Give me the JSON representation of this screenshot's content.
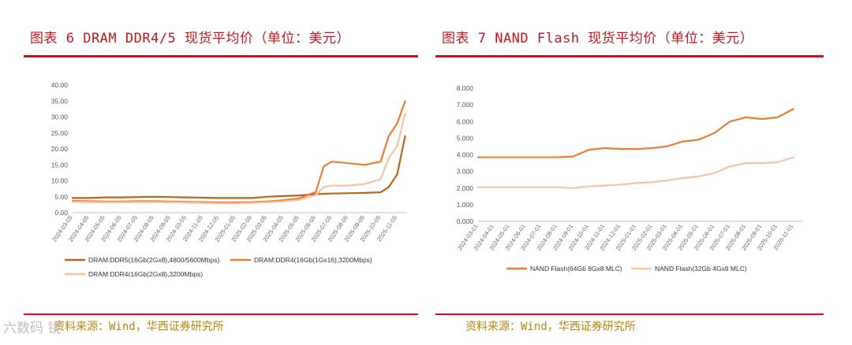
{
  "left": {
    "title": "图表 6 DRAM DDR4/5 现货平均价（单位：美元）",
    "source": "资料来源：Wind，华西证券研究所"
  },
  "right": {
    "title": "图表 7 NAND Flash 现货平均价（单位：美元）",
    "source": "资料来源：Wind，华西证券研究所"
  },
  "watermark": "六数码 镜",
  "chart_data": [
    {
      "type": "line",
      "title": "",
      "xlabel": "",
      "ylabel": "",
      "ylim": [
        0,
        40
      ],
      "yticks": [
        "0.00",
        "5.00",
        "10.00",
        "15.00",
        "20.00",
        "25.00",
        "30.00",
        "35.00",
        "40.00"
      ],
      "xticks": [
        "2024-03-05",
        "2024-04-05",
        "2024-05-05",
        "2024-06-05",
        "2024-07-05",
        "2024-08-05",
        "2024-09-05",
        "2024-10-05",
        "2024-11-05",
        "2024-12-05",
        "2025-01-05",
        "2025-02-05",
        "2025-03-05",
        "2025-04-05",
        "2025-05-05",
        "2025-06-05",
        "2025-07-05",
        "2025-08-05",
        "2025-09-05",
        "2025-10-05",
        "2025-11-05"
      ],
      "grid": false,
      "legend_position": "bottom",
      "series": [
        {
          "name": "DRAM:DDR5(16Gb(2Gx8),4800/5600Mbps)",
          "color": "#b5651d",
          "x": [
            "2024-03-05",
            "2024-04-05",
            "2024-05-05",
            "2024-06-05",
            "2024-07-05",
            "2024-08-05",
            "2024-09-05",
            "2024-10-05",
            "2024-11-05",
            "2024-12-05",
            "2025-01-05",
            "2025-02-05",
            "2025-03-05",
            "2025-04-05",
            "2025-05-05",
            "2025-06-05",
            "2025-07-05",
            "2025-08-05",
            "2025-09-05",
            "2025-10-05",
            "2025-10-20",
            "2025-11-05",
            "2025-11-20"
          ],
          "values": [
            4.6,
            4.6,
            4.8,
            4.8,
            4.9,
            5.0,
            4.9,
            4.8,
            4.7,
            4.6,
            4.6,
            4.6,
            5.0,
            5.2,
            5.4,
            5.8,
            6.0,
            6.1,
            6.2,
            6.4,
            8.0,
            12.0,
            24.0
          ]
        },
        {
          "name": "DRAM:DDR4(16Gb(1Gx16),3200Mbps)",
          "color": "#ed7d31",
          "x": [
            "2024-03-05",
            "2024-04-05",
            "2024-05-05",
            "2024-06-05",
            "2024-07-05",
            "2024-08-05",
            "2024-09-05",
            "2024-10-05",
            "2024-11-05",
            "2024-12-05",
            "2025-01-05",
            "2025-02-05",
            "2025-03-05",
            "2025-04-05",
            "2025-05-05",
            "2025-06-05",
            "2025-06-20",
            "2025-07-05",
            "2025-08-05",
            "2025-09-05",
            "2025-10-05",
            "2025-10-20",
            "2025-11-05",
            "2025-11-20"
          ],
          "values": [
            3.7,
            3.6,
            3.5,
            3.5,
            3.6,
            3.6,
            3.5,
            3.4,
            3.3,
            3.2,
            3.2,
            3.3,
            3.5,
            3.9,
            4.5,
            6.5,
            14.5,
            16.0,
            15.5,
            15.0,
            16.0,
            24.0,
            28.0,
            35.0
          ]
        },
        {
          "name": "DRAM:DDR4(16Gb(2Gx8),3200Mbps)",
          "color": "#f8c3a4",
          "x": [
            "2024-03-05",
            "2024-04-05",
            "2024-05-05",
            "2024-06-05",
            "2024-07-05",
            "2024-08-05",
            "2024-09-05",
            "2024-10-05",
            "2024-11-05",
            "2024-12-05",
            "2025-01-05",
            "2025-02-05",
            "2025-03-05",
            "2025-04-05",
            "2025-05-05",
            "2025-06-05",
            "2025-06-20",
            "2025-07-05",
            "2025-08-05",
            "2025-09-05",
            "2025-10-05",
            "2025-10-20",
            "2025-11-05",
            "2025-11-20"
          ],
          "values": [
            3.4,
            3.3,
            3.2,
            3.2,
            3.3,
            3.3,
            3.2,
            3.1,
            3.0,
            2.9,
            2.9,
            3.0,
            3.2,
            3.5,
            4.0,
            5.5,
            8.0,
            8.5,
            8.5,
            9.0,
            10.5,
            17.0,
            21.0,
            31.0
          ]
        }
      ]
    },
    {
      "type": "line",
      "title": "",
      "xlabel": "",
      "ylabel": "",
      "ylim": [
        0,
        8
      ],
      "yticks": [
        "0.000",
        "1.000",
        "2.000",
        "3.000",
        "4.000",
        "5.000",
        "6.000",
        "7.000",
        "8.000"
      ],
      "xticks": [
        "2024-03-01",
        "2024-04-01",
        "2024-05-01",
        "2024-06-01",
        "2024-07-01",
        "2024-08-01",
        "2024-09-01",
        "2024-10-01",
        "2024-11-01",
        "2024-12-01",
        "2025-01-01",
        "2025-02-01",
        "2025-03-01",
        "2025-04-01",
        "2025-05-01",
        "2025-06-01",
        "2025-07-01",
        "2025-08-01",
        "2025-09-01",
        "2025-10-01",
        "2025-11-01"
      ],
      "grid": false,
      "legend_position": "bottom",
      "series": [
        {
          "name": "NAND Flash(64Gb 8Gx8 MLC)",
          "color": "#ed7d31",
          "x": [
            "2024-03-01",
            "2024-04-01",
            "2024-05-01",
            "2024-06-01",
            "2024-07-01",
            "2024-08-01",
            "2024-09-01",
            "2024-10-01",
            "2024-11-01",
            "2024-12-01",
            "2025-01-01",
            "2025-02-01",
            "2025-03-01",
            "2025-04-01",
            "2025-05-01",
            "2025-06-01",
            "2025-07-01",
            "2025-08-01",
            "2025-09-01",
            "2025-10-01",
            "2025-11-01"
          ],
          "values": [
            3.85,
            3.85,
            3.85,
            3.85,
            3.85,
            3.85,
            3.9,
            4.3,
            4.4,
            4.35,
            4.35,
            4.4,
            4.5,
            4.8,
            4.9,
            5.3,
            6.0,
            6.25,
            6.15,
            6.25,
            6.75
          ]
        },
        {
          "name": "NAND Flash(32Gb 4Gx8 MLC)",
          "color": "#f8c3a4",
          "x": [
            "2024-03-01",
            "2024-04-01",
            "2024-05-01",
            "2024-06-01",
            "2024-07-01",
            "2024-08-01",
            "2024-09-01",
            "2024-10-01",
            "2024-11-01",
            "2024-12-01",
            "2025-01-01",
            "2025-02-01",
            "2025-03-01",
            "2025-04-01",
            "2025-05-01",
            "2025-06-01",
            "2025-07-01",
            "2025-08-01",
            "2025-09-01",
            "2025-10-01",
            "2025-11-01"
          ],
          "values": [
            2.05,
            2.05,
            2.05,
            2.05,
            2.05,
            2.05,
            2.0,
            2.1,
            2.15,
            2.2,
            2.3,
            2.35,
            2.45,
            2.6,
            2.7,
            2.9,
            3.3,
            3.5,
            3.5,
            3.55,
            3.85
          ]
        }
      ]
    }
  ]
}
